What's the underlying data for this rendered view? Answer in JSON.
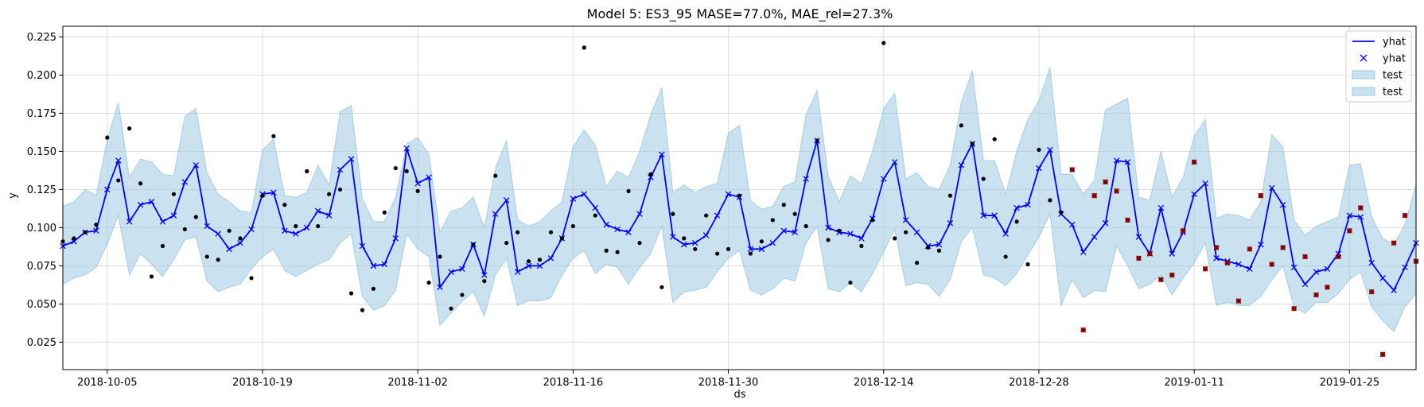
{
  "chart_data": {
    "type": "line",
    "title": "Model 5: ES3_95 MASE=77.0%, MAE_rel=27.3%",
    "xlabel": "ds",
    "ylabel": "y",
    "xlim": [
      "2018-10-01",
      "2019-01-31"
    ],
    "ylim": [
      0.007,
      0.232
    ],
    "grid": true,
    "legend_position": "top-right",
    "x_ticks": [
      "2018-10-05",
      "2018-10-19",
      "2018-11-02",
      "2018-11-16",
      "2018-11-30",
      "2018-12-14",
      "2018-12-28",
      "2019-01-11",
      "2019-01-25"
    ],
    "y_ticks": [
      "0.025",
      "0.050",
      "0.075",
      "0.100",
      "0.125",
      "0.150",
      "0.175",
      "0.200",
      "0.225"
    ],
    "y_tick_values": [
      0.025,
      0.05,
      0.075,
      0.1,
      0.125,
      0.15,
      0.175,
      0.2,
      0.225
    ],
    "legend": [
      {
        "label": "yhat",
        "kind": "line",
        "color": "#0000ff"
      },
      {
        "label": "yhat",
        "kind": "marker-x",
        "color": "#0000ff"
      },
      {
        "label": "test",
        "kind": "band",
        "color": "#9ecae1"
      },
      {
        "label": "test",
        "kind": "band",
        "color": "#9ecae1"
      }
    ],
    "colors": {
      "forecast": "#0000ff",
      "band": "#9ecae1",
      "band_edge": "#6baed6",
      "actual": "#000000",
      "test_point": "#cc0000"
    },
    "forecast": {
      "x": [
        "2018-10-01",
        "2018-10-02",
        "2018-10-03",
        "2018-10-04",
        "2018-10-05",
        "2018-10-06",
        "2018-10-07",
        "2018-10-08",
        "2018-10-09",
        "2018-10-10",
        "2018-10-11",
        "2018-10-12",
        "2018-10-13",
        "2018-10-14",
        "2018-10-15",
        "2018-10-16",
        "2018-10-17",
        "2018-10-18",
        "2018-10-19",
        "2018-10-20",
        "2018-10-21",
        "2018-10-22",
        "2018-10-23",
        "2018-10-24",
        "2018-10-25",
        "2018-10-26",
        "2018-10-27",
        "2018-10-28",
        "2018-10-29",
        "2018-10-30",
        "2018-10-31",
        "2018-11-01",
        "2018-11-02",
        "2018-11-03",
        "2018-11-04",
        "2018-11-05",
        "2018-11-06",
        "2018-11-07",
        "2018-11-08",
        "2018-11-09",
        "2018-11-10",
        "2018-11-11",
        "2018-11-12",
        "2018-11-13",
        "2018-11-14",
        "2018-11-15",
        "2018-11-16",
        "2018-11-17",
        "2018-11-18",
        "2018-11-19",
        "2018-11-20",
        "2018-11-21",
        "2018-11-22",
        "2018-11-23",
        "2018-11-24",
        "2018-11-25",
        "2018-11-26",
        "2018-11-27",
        "2018-11-28",
        "2018-11-29",
        "2018-11-30",
        "2018-12-01",
        "2018-12-02",
        "2018-12-03",
        "2018-12-04",
        "2018-12-05",
        "2018-12-06",
        "2018-12-07",
        "2018-12-08",
        "2018-12-09",
        "2018-12-10",
        "2018-12-11",
        "2018-12-12",
        "2018-12-13",
        "2018-12-14",
        "2018-12-15",
        "2018-12-16",
        "2018-12-17",
        "2018-12-18",
        "2018-12-19",
        "2018-12-20",
        "2018-12-21",
        "2018-12-22",
        "2018-12-23",
        "2018-12-24",
        "2018-12-25",
        "2018-12-26",
        "2018-12-27",
        "2018-12-28",
        "2018-12-29",
        "2018-12-30",
        "2018-12-31",
        "2019-01-01",
        "2019-01-02",
        "2019-01-03",
        "2019-01-04",
        "2019-01-05",
        "2019-01-06",
        "2019-01-07",
        "2019-01-08",
        "2019-01-09",
        "2019-01-10",
        "2019-01-11",
        "2019-01-12",
        "2019-01-13",
        "2019-01-14",
        "2019-01-15",
        "2019-01-16",
        "2019-01-17",
        "2019-01-18",
        "2019-01-19",
        "2019-01-20",
        "2019-01-21",
        "2019-01-22",
        "2019-01-23",
        "2019-01-24",
        "2019-01-25",
        "2019-01-26",
        "2019-01-27",
        "2019-01-28",
        "2019-01-29",
        "2019-01-30",
        "2019-01-31"
      ],
      "yhat": [
        0.088,
        0.091,
        0.097,
        0.098,
        0.125,
        0.144,
        0.104,
        0.115,
        0.117,
        0.104,
        0.108,
        0.13,
        0.141,
        0.101,
        0.096,
        0.086,
        0.09,
        0.099,
        0.122,
        0.123,
        0.098,
        0.096,
        0.1,
        0.111,
        0.108,
        0.138,
        0.145,
        0.088,
        0.075,
        0.076,
        0.093,
        0.152,
        0.129,
        0.133,
        0.061,
        0.071,
        0.073,
        0.089,
        0.069,
        0.109,
        0.118,
        0.071,
        0.075,
        0.075,
        0.08,
        0.093,
        0.119,
        0.122,
        0.113,
        0.102,
        0.099,
        0.097,
        0.109,
        0.133,
        0.148,
        0.094,
        0.089,
        0.09,
        0.095,
        0.108,
        0.122,
        0.12,
        0.086,
        0.086,
        0.09,
        0.098,
        0.097,
        0.132,
        0.157,
        0.1,
        0.097,
        0.096,
        0.093,
        0.106,
        0.132,
        0.143,
        0.105,
        0.097,
        0.088,
        0.089,
        0.103,
        0.141,
        0.155,
        0.108,
        0.108,
        0.096,
        0.113,
        0.115,
        0.139,
        0.151,
        0.109,
        0.102,
        0.084,
        0.094,
        0.103,
        0.144,
        0.143,
        0.094,
        0.083,
        0.113,
        0.083,
        0.097,
        0.122,
        0.129,
        0.08,
        0.078,
        0.076,
        0.073,
        0.089,
        0.126,
        0.115,
        0.074,
        0.063,
        0.071,
        0.073,
        0.083,
        0.108,
        0.107,
        0.077,
        0.067,
        0.059,
        0.074,
        0.09
      ],
      "upper": [
        0.114,
        0.117,
        0.125,
        0.121,
        0.158,
        0.182,
        0.133,
        0.145,
        0.143,
        0.135,
        0.134,
        0.173,
        0.178,
        0.136,
        0.122,
        0.117,
        0.111,
        0.11,
        0.151,
        0.158,
        0.121,
        0.12,
        0.123,
        0.141,
        0.128,
        0.176,
        0.18,
        0.119,
        0.104,
        0.104,
        0.12,
        0.155,
        0.159,
        0.148,
        0.097,
        0.111,
        0.113,
        0.12,
        0.1,
        0.139,
        0.157,
        0.105,
        0.101,
        0.104,
        0.111,
        0.117,
        0.153,
        0.164,
        0.154,
        0.127,
        0.137,
        0.133,
        0.15,
        0.174,
        0.192,
        0.123,
        0.128,
        0.123,
        0.127,
        0.129,
        0.162,
        0.167,
        0.118,
        0.112,
        0.114,
        0.127,
        0.13,
        0.174,
        0.19,
        0.134,
        0.117,
        0.134,
        0.129,
        0.15,
        0.178,
        0.188,
        0.132,
        0.136,
        0.127,
        0.125,
        0.141,
        0.182,
        0.203,
        0.144,
        0.144,
        0.122,
        0.15,
        0.171,
        0.183,
        0.205,
        0.135,
        0.135,
        0.122,
        0.131,
        0.177,
        0.181,
        0.185,
        0.12,
        0.118,
        0.15,
        0.12,
        0.133,
        0.16,
        0.171,
        0.106,
        0.109,
        0.108,
        0.105,
        0.117,
        0.161,
        0.153,
        0.105,
        0.095,
        0.101,
        0.104,
        0.107,
        0.141,
        0.142,
        0.107,
        0.093,
        0.089,
        0.102,
        0.128
      ],
      "lower": [
        0.063,
        0.067,
        0.069,
        0.074,
        0.089,
        0.108,
        0.069,
        0.083,
        0.076,
        0.068,
        0.079,
        0.092,
        0.094,
        0.065,
        0.058,
        0.061,
        0.063,
        0.073,
        0.081,
        0.086,
        0.072,
        0.068,
        0.072,
        0.076,
        0.079,
        0.09,
        0.096,
        0.055,
        0.046,
        0.049,
        0.059,
        0.096,
        0.086,
        0.081,
        0.036,
        0.044,
        0.052,
        0.058,
        0.042,
        0.069,
        0.08,
        0.049,
        0.052,
        0.052,
        0.054,
        0.069,
        0.08,
        0.085,
        0.07,
        0.076,
        0.074,
        0.063,
        0.074,
        0.083,
        0.101,
        0.051,
        0.058,
        0.059,
        0.061,
        0.071,
        0.08,
        0.085,
        0.059,
        0.056,
        0.06,
        0.067,
        0.065,
        0.09,
        0.101,
        0.06,
        0.058,
        0.064,
        0.058,
        0.07,
        0.084,
        0.099,
        0.062,
        0.064,
        0.063,
        0.055,
        0.066,
        0.091,
        0.1,
        0.069,
        0.067,
        0.062,
        0.07,
        0.082,
        0.094,
        0.109,
        0.049,
        0.066,
        0.054,
        0.059,
        0.058,
        0.088,
        0.075,
        0.06,
        0.063,
        0.069,
        0.056,
        0.067,
        0.077,
        0.09,
        0.049,
        0.051,
        0.049,
        0.049,
        0.055,
        0.066,
        0.075,
        0.048,
        0.044,
        0.051,
        0.051,
        0.057,
        0.066,
        0.071,
        0.048,
        0.039,
        0.032,
        0.048,
        0.057
      ]
    },
    "actual": {
      "x": [
        "2018-10-01",
        "2018-10-02",
        "2018-10-03",
        "2018-10-04",
        "2018-10-05",
        "2018-10-06",
        "2018-10-07",
        "2018-10-08",
        "2018-10-09",
        "2018-10-10",
        "2018-10-11",
        "2018-10-12",
        "2018-10-13",
        "2018-10-14",
        "2018-10-15",
        "2018-10-16",
        "2018-10-17",
        "2018-10-18",
        "2018-10-19",
        "2018-10-20",
        "2018-10-21",
        "2018-10-22",
        "2018-10-23",
        "2018-10-24",
        "2018-10-25",
        "2018-10-26",
        "2018-10-27",
        "2018-10-28",
        "2018-10-29",
        "2018-10-30",
        "2018-10-31",
        "2018-11-01",
        "2018-11-02",
        "2018-11-03",
        "2018-11-04",
        "2018-11-05",
        "2018-11-06",
        "2018-11-07",
        "2018-11-08",
        "2018-11-09",
        "2018-11-10",
        "2018-11-11",
        "2018-11-12",
        "2018-11-13",
        "2018-11-14",
        "2018-11-15",
        "2018-11-16",
        "2018-11-17",
        "2018-11-18",
        "2018-11-19",
        "2018-11-20",
        "2018-11-21",
        "2018-11-22",
        "2018-11-23",
        "2018-11-24",
        "2018-11-25",
        "2018-11-26",
        "2018-11-27",
        "2018-11-28",
        "2018-11-29",
        "2018-11-30",
        "2018-12-01",
        "2018-12-02",
        "2018-12-03",
        "2018-12-04",
        "2018-12-05",
        "2018-12-06",
        "2018-12-07",
        "2018-12-08",
        "2018-12-09",
        "2018-12-10",
        "2018-12-11",
        "2018-12-12",
        "2018-12-13",
        "2018-12-14",
        "2018-12-15",
        "2018-12-16",
        "2018-12-17",
        "2018-12-18",
        "2018-12-19",
        "2018-12-20",
        "2018-12-21",
        "2018-12-22",
        "2018-12-23",
        "2018-12-24",
        "2018-12-25",
        "2018-12-26",
        "2018-12-27",
        "2018-12-28",
        "2018-12-29",
        "2018-12-30"
      ],
      "y": [
        0.091,
        0.093,
        0.097,
        0.102,
        0.159,
        0.131,
        0.165,
        0.129,
        0.068,
        0.088,
        0.122,
        0.099,
        0.107,
        0.081,
        0.079,
        0.098,
        0.093,
        0.067,
        0.121,
        0.16,
        0.115,
        0.101,
        0.137,
        0.101,
        0.122,
        0.125,
        0.057,
        0.046,
        0.06,
        0.11,
        0.139,
        0.137,
        0.124,
        0.064,
        0.081,
        0.047,
        0.056,
        0.089,
        0.065,
        0.134,
        0.09,
        0.097,
        0.078,
        0.079,
        0.097,
        0.093,
        0.101,
        0.218,
        0.108,
        0.085,
        0.084,
        0.124,
        0.09,
        0.135,
        0.061,
        0.109,
        0.093,
        0.086,
        0.108,
        0.083,
        0.086,
        0.121,
        0.083,
        0.091,
        0.105,
        0.115,
        0.109,
        0.101,
        0.157,
        0.092,
        0.098,
        0.064,
        0.088,
        0.105,
        0.221,
        0.093,
        0.097,
        0.077,
        0.087,
        0.085,
        0.121,
        0.167,
        0.155,
        0.132,
        0.158,
        0.081,
        0.104,
        0.076,
        0.151,
        0.118,
        0.11
      ]
    },
    "test_points": {
      "x": [
        "2018-12-31",
        "2019-01-01",
        "2019-01-02",
        "2019-01-03",
        "2019-01-04",
        "2019-01-05",
        "2019-01-06",
        "2019-01-07",
        "2019-01-08",
        "2019-01-09",
        "2019-01-10",
        "2019-01-11",
        "2019-01-12",
        "2019-01-13",
        "2019-01-14",
        "2019-01-15",
        "2019-01-16",
        "2019-01-17",
        "2019-01-18",
        "2019-01-19",
        "2019-01-20",
        "2019-01-21",
        "2019-01-22",
        "2019-01-23",
        "2019-01-24",
        "2019-01-25",
        "2019-01-26",
        "2019-01-27",
        "2019-01-28",
        "2019-01-29",
        "2019-01-30",
        "2019-01-31"
      ],
      "y": [
        0.138,
        0.033,
        0.121,
        0.13,
        0.124,
        0.105,
        0.08,
        0.083,
        0.066,
        0.069,
        0.098,
        0.143,
        0.073,
        0.087,
        0.077,
        0.052,
        0.086,
        0.121,
        0.076,
        0.087,
        0.047,
        0.081,
        0.056,
        0.061,
        0.081,
        0.098,
        0.113,
        0.058,
        0.017,
        0.09,
        0.108,
        0.078
      ]
    }
  }
}
